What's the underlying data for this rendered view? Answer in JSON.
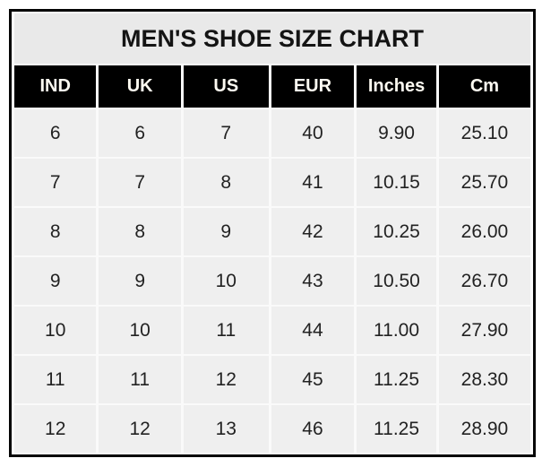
{
  "title": "MEN'S SHOE SIZE CHART",
  "table": {
    "columns": [
      "IND",
      "UK",
      "US",
      "EUR",
      "Inches",
      "Cm"
    ],
    "rows": [
      [
        "6",
        "6",
        "7",
        "40",
        "9.90",
        "25.10"
      ],
      [
        "7",
        "7",
        "8",
        "41",
        "10.15",
        "25.70"
      ],
      [
        "8",
        "8",
        "9",
        "42",
        "10.25",
        "26.00"
      ],
      [
        "9",
        "9",
        "10",
        "43",
        "10.50",
        "26.70"
      ],
      [
        "10",
        "10",
        "11",
        "44",
        "11.00",
        "27.90"
      ],
      [
        "11",
        "11",
        "12",
        "45",
        "11.25",
        "28.30"
      ],
      [
        "12",
        "12",
        "13",
        "46",
        "11.25",
        "28.90"
      ]
    ]
  },
  "colors": {
    "title_bg": "#e9e9e9",
    "header_bg": "#000000",
    "header_text": "#fdfaf1",
    "cell_bg": "#efefef",
    "gap_line": "#fafafa",
    "border": "#050505",
    "cell_text": "#222222"
  },
  "chart_data": {
    "type": "table",
    "title": "MEN'S SHOE SIZE CHART",
    "columns": [
      "IND",
      "UK",
      "US",
      "EUR",
      "Inches",
      "Cm"
    ],
    "rows": [
      [
        6,
        6,
        7,
        40,
        9.9,
        25.1
      ],
      [
        7,
        7,
        8,
        41,
        10.15,
        25.7
      ],
      [
        8,
        8,
        9,
        42,
        10.25,
        26.0
      ],
      [
        9,
        9,
        10,
        43,
        10.5,
        26.7
      ],
      [
        10,
        10,
        11,
        44,
        11.0,
        27.9
      ],
      [
        11,
        11,
        12,
        45,
        11.25,
        28.3
      ],
      [
        12,
        12,
        13,
        46,
        11.25,
        28.9
      ]
    ]
  }
}
